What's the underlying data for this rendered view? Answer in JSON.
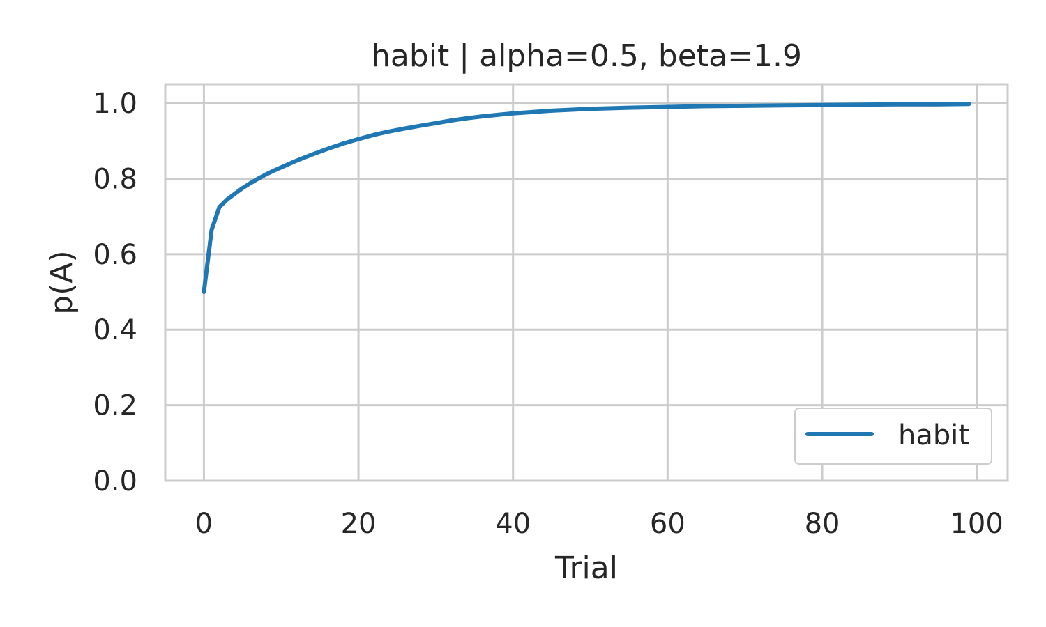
{
  "chart_data": {
    "type": "line",
    "title": "habit | alpha=0.5, beta=1.9",
    "xlabel": "Trial",
    "ylabel": "p(A)",
    "xlim": [
      -5,
      104
    ],
    "ylim": [
      0.0,
      1.05
    ],
    "xticks": [
      0,
      20,
      40,
      60,
      80,
      100
    ],
    "yticks": [
      0.0,
      0.2,
      0.4,
      0.6,
      0.8,
      1.0
    ],
    "xtick_labels": [
      "0",
      "20",
      "40",
      "60",
      "80",
      "100"
    ],
    "ytick_labels": [
      "0.0",
      "0.2",
      "0.4",
      "0.6",
      "0.8",
      "1.0"
    ],
    "grid": true,
    "legend": {
      "placement": "lower-right",
      "entries": [
        "habit"
      ]
    },
    "series": [
      {
        "name": "habit",
        "color": "#1f77b4",
        "x": [
          0,
          1,
          2,
          3,
          4,
          5,
          6,
          7,
          8,
          9,
          10,
          12,
          14,
          16,
          18,
          20,
          22,
          24,
          26,
          28,
          30,
          32,
          34,
          36,
          38,
          40,
          45,
          50,
          55,
          60,
          65,
          70,
          75,
          80,
          85,
          90,
          95,
          99
        ],
        "y": [
          0.5,
          0.665,
          0.725,
          0.745,
          0.76,
          0.775,
          0.788,
          0.8,
          0.811,
          0.821,
          0.83,
          0.848,
          0.864,
          0.879,
          0.893,
          0.905,
          0.916,
          0.925,
          0.933,
          0.94,
          0.947,
          0.954,
          0.96,
          0.965,
          0.969,
          0.973,
          0.98,
          0.985,
          0.988,
          0.99,
          0.992,
          0.993,
          0.994,
          0.995,
          0.996,
          0.997,
          0.997,
          0.998
        ]
      }
    ]
  }
}
